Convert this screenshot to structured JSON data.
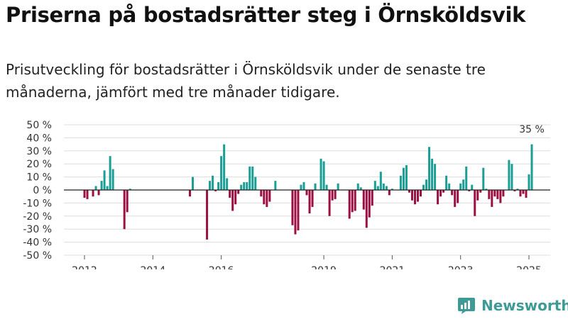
{
  "title": "Priserna på bostadsrätter steg i Örnsköldsvik",
  "subtitle": "Prisutveckling för bostadsrätter i Örnsköldsvik under de senaste tre månaderna, jämfört med tre månader tidigare.",
  "brand": {
    "name": "Newsworthy",
    "color": "#3d9a95"
  },
  "colors": {
    "positive": "#1a9e96",
    "negative": "#9c0f43"
  },
  "chart_data": {
    "type": "bar",
    "title": "Priserna på bostadsrätter steg i Örnsköldsvik",
    "subtitle": "Prisutveckling för bostadsrätter i Örnsköldsvik under de senaste tre månaderna, jämfört med tre månader tidigare.",
    "unit": "%",
    "ylim": [
      -50,
      50
    ],
    "yticks": [
      50,
      40,
      30,
      20,
      10,
      0,
      -10,
      -20,
      -30,
      -40,
      -50
    ],
    "ytick_labels": [
      "50 %",
      "40 %",
      "30 %",
      "20 %",
      "10 %",
      "0 %",
      "-10 %",
      "-20 %",
      "-30 %",
      "-40 %",
      "-50 %"
    ],
    "xticks": [
      2012,
      2014,
      2016,
      2019,
      2021,
      2023,
      2025
    ],
    "grid": true,
    "legend": "none",
    "last_value_label": "35 %",
    "series": [
      {
        "values": [
          [
            "2012-01",
            -6
          ],
          [
            "2012-02",
            -7
          ],
          [
            "2012-04",
            -5
          ],
          [
            "2012-05",
            3
          ],
          [
            "2012-06",
            -4
          ],
          [
            "2012-07",
            7
          ],
          [
            "2012-08",
            15
          ],
          [
            "2012-09",
            3
          ],
          [
            "2012-10",
            26
          ],
          [
            "2012-11",
            16
          ],
          [
            "2013-03",
            -30
          ],
          [
            "2013-04",
            -17
          ],
          [
            "2013-05",
            1
          ],
          [
            "2015-02",
            -5
          ],
          [
            "2015-03",
            10
          ],
          [
            "2015-08",
            -38
          ],
          [
            "2015-09",
            7
          ],
          [
            "2015-10",
            11
          ],
          [
            "2015-11",
            -1
          ],
          [
            "2015-12",
            6
          ],
          [
            "2016-01",
            26
          ],
          [
            "2016-02",
            35
          ],
          [
            "2016-03",
            9
          ],
          [
            "2016-04",
            -6
          ],
          [
            "2016-05",
            -16
          ],
          [
            "2016-06",
            -11
          ],
          [
            "2016-07",
            -3
          ],
          [
            "2016-08",
            4
          ],
          [
            "2016-09",
            6
          ],
          [
            "2016-10",
            6
          ],
          [
            "2016-11",
            18
          ],
          [
            "2016-12",
            18
          ],
          [
            "2017-01",
            10
          ],
          [
            "2017-03",
            -5
          ],
          [
            "2017-04",
            -11
          ],
          [
            "2017-05",
            -13
          ],
          [
            "2017-06",
            -9
          ],
          [
            "2017-08",
            7
          ],
          [
            "2018-02",
            -27
          ],
          [
            "2018-03",
            -34
          ],
          [
            "2018-04",
            -31
          ],
          [
            "2018-05",
            4
          ],
          [
            "2018-06",
            6
          ],
          [
            "2018-07",
            -4
          ],
          [
            "2018-08",
            -18
          ],
          [
            "2018-09",
            -13
          ],
          [
            "2018-10",
            5
          ],
          [
            "2018-12",
            24
          ],
          [
            "2019-01",
            22
          ],
          [
            "2019-02",
            4
          ],
          [
            "2019-03",
            -20
          ],
          [
            "2019-04",
            -8
          ],
          [
            "2019-05",
            -7
          ],
          [
            "2019-06",
            5
          ],
          [
            "2019-10",
            -22
          ],
          [
            "2019-11",
            -17
          ],
          [
            "2019-12",
            -16
          ],
          [
            "2020-01",
            5
          ],
          [
            "2020-02",
            2
          ],
          [
            "2020-03",
            -15
          ],
          [
            "2020-04",
            -29
          ],
          [
            "2020-05",
            -21
          ],
          [
            "2020-06",
            -12
          ],
          [
            "2020-07",
            7
          ],
          [
            "2020-08",
            3
          ],
          [
            "2020-09",
            14
          ],
          [
            "2020-10",
            5
          ],
          [
            "2020-11",
            3
          ],
          [
            "2020-12",
            -4
          ],
          [
            "2021-01",
            1
          ],
          [
            "2021-04",
            11
          ],
          [
            "2021-05",
            17
          ],
          [
            "2021-06",
            19
          ],
          [
            "2021-07",
            -2
          ],
          [
            "2021-08",
            -8
          ],
          [
            "2021-09",
            -11
          ],
          [
            "2021-10",
            -9
          ],
          [
            "2021-11",
            -5
          ],
          [
            "2021-12",
            4
          ],
          [
            "2022-01",
            8
          ],
          [
            "2022-02",
            33
          ],
          [
            "2022-03",
            24
          ],
          [
            "2022-04",
            20
          ],
          [
            "2022-05",
            -11
          ],
          [
            "2022-06",
            -5
          ],
          [
            "2022-07",
            -2
          ],
          [
            "2022-08",
            11
          ],
          [
            "2022-09",
            5
          ],
          [
            "2022-10",
            -4
          ],
          [
            "2022-11",
            -13
          ],
          [
            "2022-12",
            -10
          ],
          [
            "2023-01",
            5
          ],
          [
            "2023-02",
            8
          ],
          [
            "2023-03",
            18
          ],
          [
            "2023-04",
            -1
          ],
          [
            "2023-05",
            4
          ],
          [
            "2023-06",
            -20
          ],
          [
            "2023-07",
            -8
          ],
          [
            "2023-08",
            -2
          ],
          [
            "2023-09",
            17
          ],
          [
            "2023-10",
            1
          ],
          [
            "2023-11",
            -7
          ],
          [
            "2023-12",
            -13
          ],
          [
            "2024-01",
            -5
          ],
          [
            "2024-02",
            -7
          ],
          [
            "2024-03",
            -10
          ],
          [
            "2024-04",
            -5
          ],
          [
            "2024-06",
            23
          ],
          [
            "2024-07",
            20
          ],
          [
            "2024-08",
            -1
          ],
          [
            "2024-09",
            1
          ],
          [
            "2024-10",
            -5
          ],
          [
            "2024-11",
            -3
          ],
          [
            "2024-12",
            -6
          ],
          [
            "2025-01",
            12
          ],
          [
            "2025-02",
            35
          ]
        ]
      }
    ]
  }
}
